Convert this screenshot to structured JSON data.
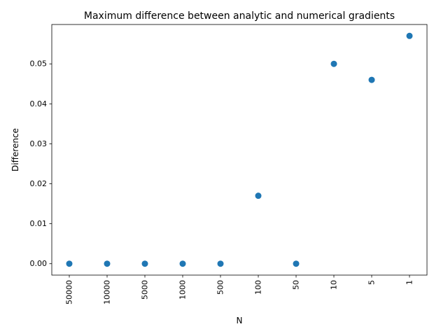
{
  "chart_data": {
    "type": "scatter",
    "title": "Maximum difference between analytic and numerical gradients",
    "xlabel": "N",
    "ylabel": "Difference",
    "categories": [
      "50000",
      "10000",
      "5000",
      "1000",
      "500",
      "100",
      "50",
      "10",
      "5",
      "1"
    ],
    "values": [
      0.0,
      0.0,
      0.0,
      0.0,
      0.0,
      0.017,
      0.0,
      0.05,
      0.046,
      0.057
    ],
    "ylim": [
      -0.00285,
      0.05985
    ],
    "yticks": [
      0.0,
      0.01,
      0.02,
      0.03,
      0.04,
      0.05
    ],
    "ytick_labels": [
      "0.00",
      "0.01",
      "0.02",
      "0.03",
      "0.04",
      "0.05"
    ],
    "xtick_rotation": "vertical",
    "grid": false,
    "legend": "none",
    "marker_color": "#1f77b4"
  }
}
